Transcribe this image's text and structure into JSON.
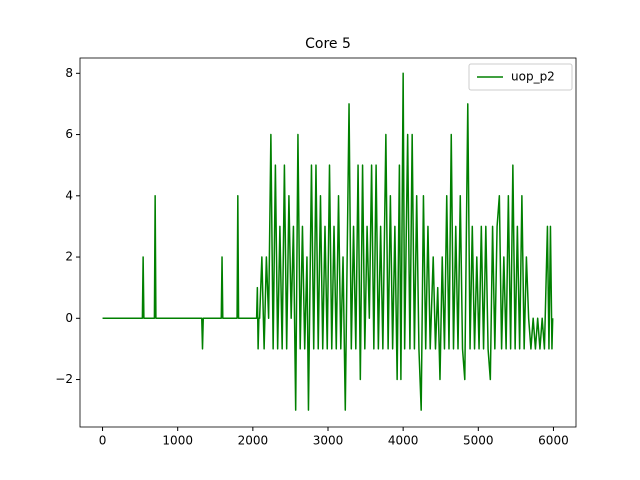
{
  "chart_data": {
    "type": "line",
    "title": "Core 5",
    "x": [
      0,
      530,
      540,
      550,
      690,
      700,
      710,
      1320,
      1330,
      1340,
      1580,
      1590,
      1600,
      1790,
      1800,
      1810,
      2050,
      2060,
      2070,
      2080,
      2090,
      2120,
      2150,
      2180,
      2210,
      2240,
      2270,
      2300,
      2330,
      2360,
      2390,
      2420,
      2450,
      2480,
      2510,
      2540,
      2570,
      2600,
      2630,
      2660,
      2690,
      2720,
      2740,
      2780,
      2810,
      2840,
      2870,
      2900,
      2930,
      2960,
      2990,
      3020,
      3050,
      3080,
      3110,
      3140,
      3170,
      3200,
      3230,
      3260,
      3280,
      3310,
      3340,
      3370,
      3400,
      3430,
      3460,
      3490,
      3520,
      3550,
      3580,
      3610,
      3640,
      3670,
      3700,
      3730,
      3770,
      3800,
      3830,
      3860,
      3890,
      3920,
      3950,
      3970,
      4000,
      4020,
      4060,
      4090,
      4120,
      4150,
      4180,
      4210,
      4240,
      4270,
      4300,
      4330,
      4360,
      4400,
      4430,
      4460,
      4490,
      4520,
      4550,
      4580,
      4610,
      4640,
      4670,
      4700,
      4730,
      4760,
      4790,
      4820,
      4860,
      4890,
      4920,
      4950,
      4980,
      5010,
      5040,
      5070,
      5100,
      5130,
      5160,
      5190,
      5220,
      5250,
      5280,
      5310,
      5340,
      5370,
      5400,
      5430,
      5460,
      5490,
      5520,
      5550,
      5580,
      5610,
      5640,
      5670,
      5700,
      5730,
      5760,
      5790,
      5820,
      5850,
      5880,
      5920,
      5940,
      5960,
      5980,
      5990
    ],
    "series": [
      {
        "name": "uop_p2",
        "color": "#008000",
        "values": [
          0,
          0,
          2,
          0,
          0,
          4,
          0,
          0,
          -1,
          0,
          0,
          2,
          0,
          0,
          4,
          0,
          0,
          1,
          -1,
          0,
          0,
          2,
          -1,
          2,
          0,
          6,
          -1,
          5,
          -1,
          3,
          -1,
          5,
          -1,
          4,
          0,
          3,
          -3,
          6,
          -1,
          3,
          -1,
          2,
          -3,
          5,
          -1,
          5,
          -1,
          4,
          -1,
          3,
          -1,
          5,
          -1,
          3,
          -1,
          4,
          -1,
          2,
          -3,
          3,
          7,
          -1,
          3,
          -1,
          5,
          -2,
          5,
          -1,
          3,
          0,
          5,
          -1,
          5,
          -1,
          3,
          -1,
          6,
          -1,
          4,
          -1,
          3,
          -2,
          5,
          -2,
          8,
          -1,
          6,
          -1,
          6,
          -1,
          4,
          -1,
          -3,
          4,
          -1,
          3,
          -1,
          2,
          -1,
          1,
          -2,
          2,
          -1,
          4,
          -1,
          6,
          -1,
          3,
          -1,
          4,
          -1,
          -2,
          7,
          -1,
          3,
          -1,
          2,
          -1,
          3,
          -1,
          3,
          -1,
          -2,
          3,
          -1,
          3,
          4,
          -1,
          2,
          -1,
          4,
          -1,
          5,
          -1,
          3,
          -1,
          4,
          -1,
          2,
          0,
          -1,
          0,
          -1,
          0,
          -1,
          0,
          -1,
          3,
          -1,
          3,
          -1,
          0
        ]
      }
    ],
    "xlim": [
      -300,
      6300
    ],
    "ylim": [
      -3.55,
      8.5
    ],
    "xticks": [
      0,
      1000,
      2000,
      3000,
      4000,
      5000,
      6000
    ],
    "yticks": [
      {
        "value": -2,
        "label": "−2"
      },
      0,
      2,
      4,
      6,
      8
    ],
    "legend": "upper right"
  }
}
